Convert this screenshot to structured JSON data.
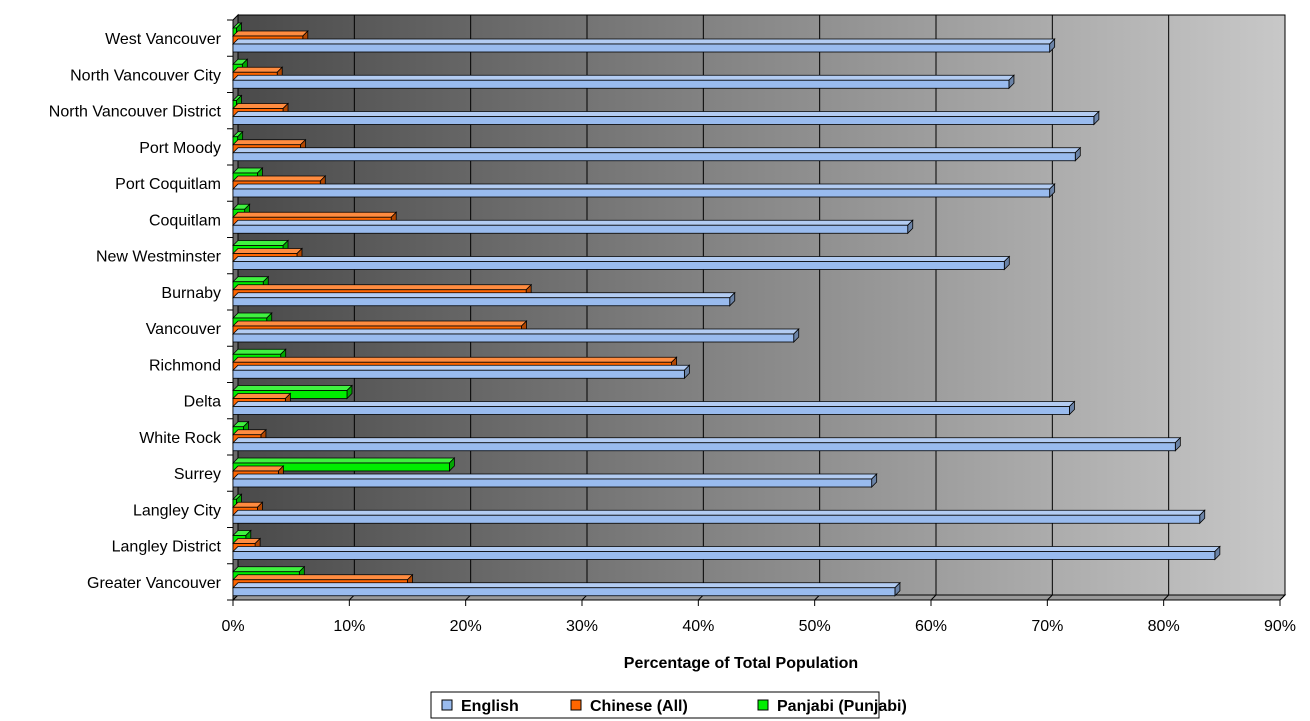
{
  "chart_data": {
    "type": "bar",
    "orientation": "horizontal",
    "style": "3d",
    "title": "",
    "xlabel": "Percentage of Total Population",
    "ylabel": "",
    "xlim": [
      0,
      90
    ],
    "x_ticks": [
      "0%",
      "10%",
      "20%",
      "30%",
      "40%",
      "50%",
      "60%",
      "70%",
      "80%",
      "90%"
    ],
    "grid": true,
    "legend_position": "bottom",
    "categories": [
      "West Vancouver",
      "North Vancouver City",
      "North Vancouver District",
      "Port Moody",
      "Port Coquitlam",
      "Coquitlam",
      "New Westminster",
      "Burnaby",
      "Vancouver",
      "Richmond",
      "Delta",
      "White Rock",
      "Surrey",
      "Langley City",
      "Langley District",
      "Greater Vancouver"
    ],
    "series": [
      {
        "name": "English",
        "color": "#99bbee",
        "values": [
          70.2,
          66.7,
          74.0,
          72.4,
          70.2,
          58.0,
          66.3,
          42.7,
          48.2,
          38.8,
          71.9,
          81.0,
          54.9,
          83.1,
          84.4,
          56.9
        ]
      },
      {
        "name": "Chinese (All)",
        "color": "#ff6600",
        "values": [
          6.0,
          3.8,
          4.3,
          5.8,
          7.5,
          13.6,
          5.5,
          25.2,
          24.8,
          37.7,
          4.5,
          2.4,
          3.9,
          2.1,
          1.9,
          15.0
        ]
      },
      {
        "name": "Panjabi (Punjabi)",
        "color": "#00ee00",
        "values": [
          0.3,
          0.8,
          0.3,
          0.4,
          2.1,
          1.0,
          4.3,
          2.6,
          2.9,
          4.1,
          9.8,
          0.9,
          18.6,
          0.3,
          1.1,
          5.7
        ]
      }
    ]
  }
}
